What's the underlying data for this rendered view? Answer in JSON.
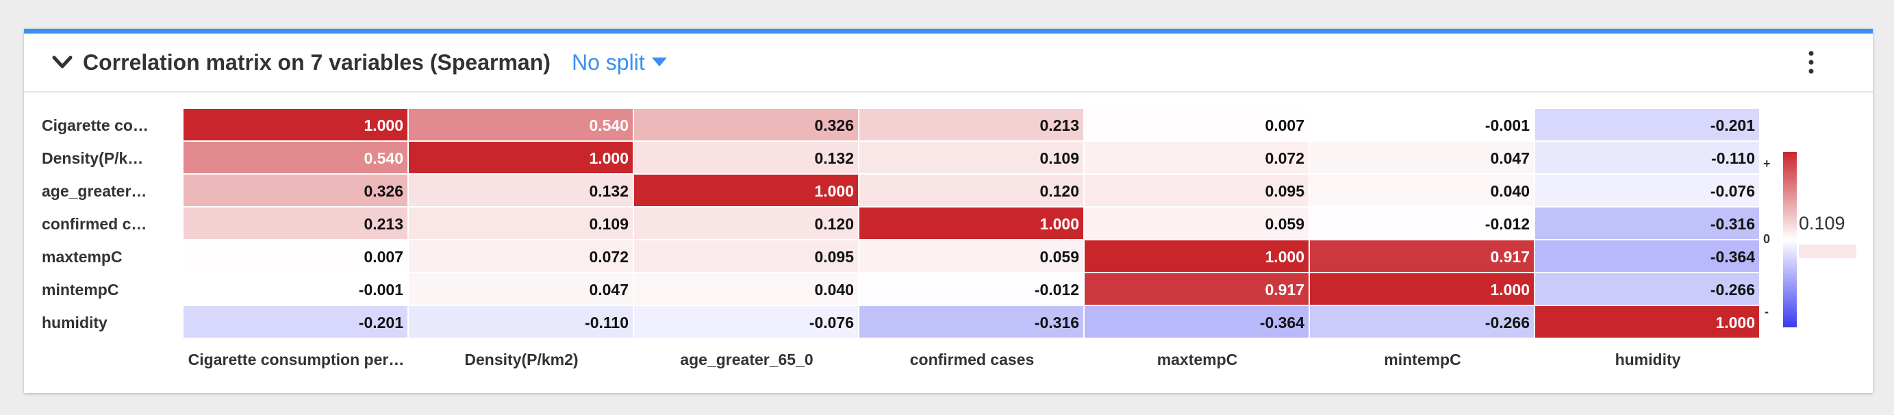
{
  "header": {
    "title": "Correlation matrix on 7 variables (Spearman)",
    "split_label": "No split",
    "chevron_icon": "chevron-down-icon",
    "menu_icon": "kebab-menu-icon",
    "accent_color": "#3b8ef3"
  },
  "chart_data": {
    "type": "heatmap",
    "title": "Correlation matrix on 7 variables (Spearman)",
    "row_labels": [
      "Cigarette co…",
      "Density(P/k…",
      "age_greater…",
      "confirmed c…",
      "maxtempC",
      "mintempC",
      "humidity"
    ],
    "col_labels": [
      "Cigarette consumption per…",
      "Density(P/km2)",
      "age_greater_65_0",
      "confirmed cases",
      "maxtempC",
      "mintempC",
      "humidity"
    ],
    "values": [
      [
        1.0,
        0.54,
        0.326,
        0.213,
        0.007,
        -0.001,
        -0.201
      ],
      [
        0.54,
        1.0,
        0.132,
        0.109,
        0.072,
        0.047,
        -0.11
      ],
      [
        0.326,
        0.132,
        1.0,
        0.12,
        0.095,
        0.04,
        -0.076
      ],
      [
        0.213,
        0.109,
        0.12,
        1.0,
        0.059,
        -0.012,
        -0.316
      ],
      [
        0.007,
        0.072,
        0.095,
        0.059,
        1.0,
        0.917,
        -0.364
      ],
      [
        -0.001,
        0.047,
        0.04,
        -0.012,
        0.917,
        1.0,
        -0.266
      ],
      [
        -0.201,
        -0.11,
        -0.076,
        -0.316,
        -0.364,
        -0.266,
        1.0
      ]
    ],
    "value_range": [
      -1,
      1
    ],
    "positive_color": "#c9262c",
    "negative_color": "#3b3bf0",
    "legend": {
      "plus_label": "+",
      "zero_label": "0",
      "minus_label": "-",
      "highlight_value": "0.109"
    }
  }
}
